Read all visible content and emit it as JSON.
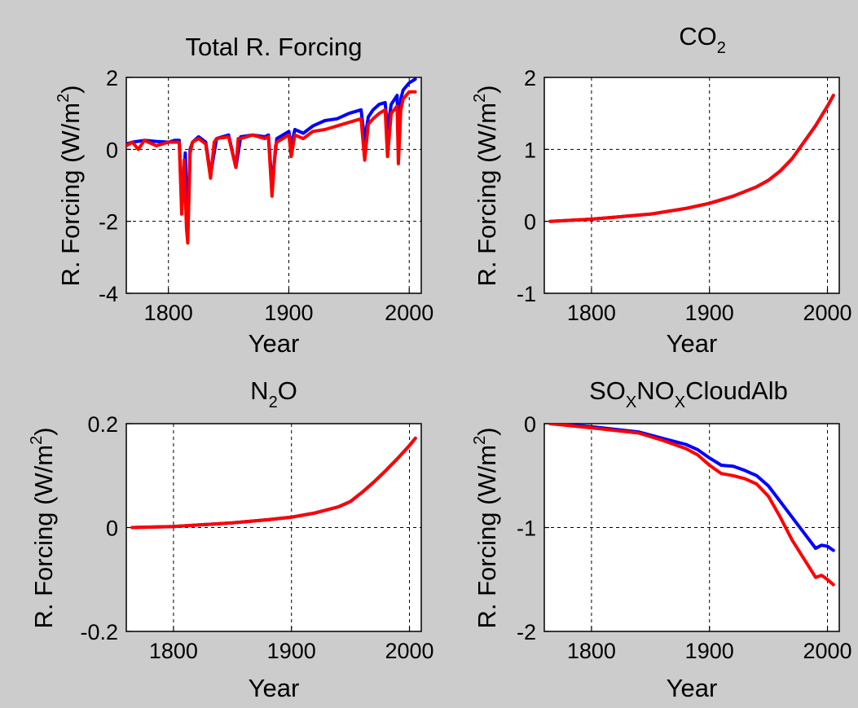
{
  "chart_data": [
    {
      "type": "line",
      "title": "Total R. Forcing",
      "xlabel": "Year",
      "ylabel": "R. Forcing (W/m^2)",
      "xlim": [
        1765,
        2010
      ],
      "ylim": [
        -4,
        2
      ],
      "xticks": [
        1800,
        1900,
        2000
      ],
      "yticks": [
        -4,
        -2,
        0,
        2
      ],
      "grid": true,
      "series": [
        {
          "color": "#0000ff",
          "x": [
            1765,
            1770,
            1780,
            1790,
            1800,
            1805,
            1809,
            1811,
            1814,
            1816,
            1818,
            1820,
            1825,
            1831,
            1835,
            1840,
            1850,
            1856,
            1860,
            1870,
            1880,
            1883,
            1886,
            1890,
            1900,
            1902,
            1905,
            1912,
            1920,
            1930,
            1940,
            1950,
            1960,
            1963,
            1966,
            1970,
            1975,
            1980,
            1982,
            1985,
            1990,
            1991,
            1993,
            1995,
            2000,
            2005
          ],
          "y": [
            0.15,
            0.2,
            0.25,
            0.22,
            0.2,
            0.25,
            0.25,
            -1.6,
            -0.1,
            -2.4,
            0.0,
            0.2,
            0.35,
            0.2,
            -0.7,
            0.3,
            0.4,
            -0.5,
            0.35,
            0.4,
            0.35,
            0.4,
            -1.0,
            0.3,
            0.5,
            0.1,
            0.55,
            0.45,
            0.65,
            0.8,
            0.85,
            1.0,
            1.1,
            0.25,
            0.9,
            1.1,
            1.25,
            1.3,
            0.55,
            1.25,
            1.5,
            0.05,
            1.4,
            1.65,
            1.85,
            1.95
          ]
        },
        {
          "color": "#ff0000",
          "x": [
            1765,
            1770,
            1775,
            1780,
            1790,
            1800,
            1805,
            1809,
            1811,
            1813,
            1815,
            1816,
            1818,
            1820,
            1825,
            1831,
            1835,
            1838,
            1840,
            1850,
            1856,
            1858,
            1860,
            1870,
            1880,
            1883,
            1886,
            1889,
            1890,
            1900,
            1902,
            1905,
            1912,
            1920,
            1930,
            1940,
            1950,
            1960,
            1963,
            1966,
            1970,
            1975,
            1980,
            1982,
            1985,
            1990,
            1991,
            1993,
            1995,
            2000,
            2005
          ],
          "y": [
            0.1,
            0.2,
            0.0,
            0.25,
            0.1,
            0.2,
            0.2,
            0.2,
            -1.8,
            -0.3,
            -2.2,
            -2.6,
            -0.1,
            0.2,
            0.3,
            0.15,
            -0.8,
            0.2,
            0.3,
            0.35,
            -0.5,
            0.3,
            0.3,
            0.4,
            0.3,
            0.35,
            -1.3,
            0.1,
            0.2,
            0.4,
            -0.2,
            0.4,
            0.3,
            0.5,
            0.55,
            0.65,
            0.75,
            0.85,
            -0.3,
            0.7,
            0.85,
            1.0,
            1.1,
            -0.2,
            1.0,
            1.2,
            -0.4,
            1.1,
            1.4,
            1.6,
            1.6
          ]
        }
      ]
    },
    {
      "type": "line",
      "title": "CO",
      "title_sub": "2",
      "xlabel": "Year",
      "ylabel": "R. Forcing (W/m^2)",
      "xlim": [
        1760,
        2010
      ],
      "ylim": [
        -1,
        2
      ],
      "xticks": [
        1800,
        1900,
        2000
      ],
      "yticks": [
        -1,
        0,
        1,
        2
      ],
      "grid": true,
      "series": [
        {
          "color": "#0000ff",
          "x": [
            1765,
            1800,
            1850,
            1880,
            1900,
            1920,
            1940,
            1950,
            1960,
            1970,
            1980,
            1990,
            2000,
            2005
          ],
          "y": [
            0.0,
            0.03,
            0.1,
            0.18,
            0.25,
            0.35,
            0.48,
            0.57,
            0.7,
            0.87,
            1.1,
            1.33,
            1.6,
            1.75
          ]
        },
        {
          "color": "#ff0000",
          "x": [
            1765,
            1800,
            1850,
            1880,
            1900,
            1920,
            1940,
            1950,
            1960,
            1970,
            1980,
            1990,
            2000,
            2005
          ],
          "y": [
            0.0,
            0.03,
            0.1,
            0.18,
            0.25,
            0.35,
            0.48,
            0.57,
            0.7,
            0.87,
            1.1,
            1.33,
            1.6,
            1.75
          ]
        }
      ]
    },
    {
      "type": "line",
      "title": "N",
      "title_sub": "2",
      "title_after": "O",
      "xlabel": "Year",
      "ylabel": "R. Forcing (W/m^2)",
      "xlim": [
        1760,
        2010
      ],
      "ylim": [
        -0.2,
        0.2
      ],
      "xticks": [
        1800,
        1900,
        2000
      ],
      "yticks": [
        -0.2,
        0,
        0.2
      ],
      "grid": true,
      "series": [
        {
          "color": "#0000ff",
          "x": [
            1765,
            1800,
            1850,
            1880,
            1900,
            1920,
            1940,
            1950,
            1960,
            1970,
            1980,
            1990,
            2000,
            2005
          ],
          "y": [
            0.0,
            0.002,
            0.009,
            0.015,
            0.02,
            0.028,
            0.04,
            0.05,
            0.068,
            0.088,
            0.11,
            0.133,
            0.158,
            0.172
          ]
        },
        {
          "color": "#ff0000",
          "x": [
            1765,
            1800,
            1850,
            1880,
            1900,
            1920,
            1940,
            1950,
            1960,
            1970,
            1980,
            1990,
            2000,
            2005
          ],
          "y": [
            0.0,
            0.002,
            0.009,
            0.015,
            0.02,
            0.028,
            0.04,
            0.05,
            0.068,
            0.088,
            0.11,
            0.133,
            0.158,
            0.172
          ]
        }
      ]
    },
    {
      "type": "line",
      "title": "SO",
      "title_sub": "X",
      "title_after": "NO",
      "title_sub2": "X",
      "title_after2": "CloudAlb",
      "xlabel": "Year",
      "ylabel": "R. Forcing (W/m^2)",
      "xlim": [
        1760,
        2010
      ],
      "ylim": [
        -2,
        0
      ],
      "xticks": [
        1800,
        1900,
        2000
      ],
      "yticks": [
        -2,
        -1,
        0
      ],
      "grid": true,
      "series": [
        {
          "color": "#0000ff",
          "x": [
            1765,
            1800,
            1840,
            1860,
            1880,
            1890,
            1900,
            1910,
            1920,
            1930,
            1940,
            1950,
            1960,
            1970,
            1980,
            1990,
            1995,
            2000,
            2005
          ],
          "y": [
            0.0,
            -0.03,
            -0.08,
            -0.14,
            -0.2,
            -0.25,
            -0.33,
            -0.4,
            -0.41,
            -0.45,
            -0.5,
            -0.6,
            -0.75,
            -0.9,
            -1.05,
            -1.2,
            -1.17,
            -1.18,
            -1.22
          ]
        },
        {
          "color": "#ff0000",
          "x": [
            1765,
            1800,
            1840,
            1860,
            1880,
            1890,
            1900,
            1910,
            1920,
            1930,
            1940,
            1950,
            1960,
            1970,
            1980,
            1990,
            1995,
            2000,
            2005
          ],
          "y": [
            0.0,
            -0.04,
            -0.09,
            -0.16,
            -0.24,
            -0.3,
            -0.4,
            -0.48,
            -0.5,
            -0.53,
            -0.58,
            -0.7,
            -0.9,
            -1.12,
            -1.3,
            -1.48,
            -1.46,
            -1.5,
            -1.55
          ]
        }
      ]
    }
  ]
}
